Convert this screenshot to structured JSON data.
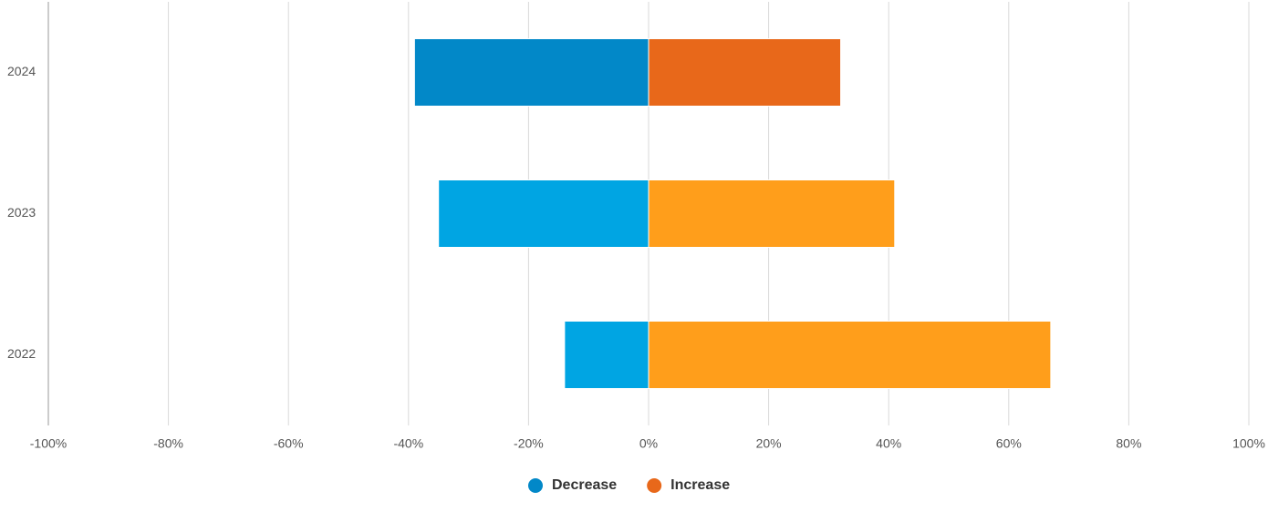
{
  "chart_data": {
    "type": "diverging-bar",
    "categories": [
      "2024",
      "2023",
      "2022"
    ],
    "series": [
      {
        "name": "Decrease",
        "color": "#0288c8",
        "colors": [
          "#0288c8",
          "#00a5e3",
          "#00a5e3"
        ],
        "values": [
          -39,
          -35,
          -14
        ]
      },
      {
        "name": "Increase",
        "color": "#e8681a",
        "colors": [
          "#e8681a",
          "#ff9e1b",
          "#ff9e1b"
        ],
        "values": [
          32,
          41,
          67
        ]
      }
    ],
    "xlim": [
      -100,
      100
    ],
    "xticks": [
      {
        "value": -100,
        "label": "-100%"
      },
      {
        "value": -80,
        "label": "-80%"
      },
      {
        "value": -60,
        "label": "-60%"
      },
      {
        "value": -40,
        "label": "-40%"
      },
      {
        "value": -20,
        "label": "-20%"
      },
      {
        "value": 0,
        "label": "0%"
      },
      {
        "value": 20,
        "label": "20%"
      },
      {
        "value": 40,
        "label": "40%"
      },
      {
        "value": 60,
        "label": "60%"
      },
      {
        "value": 80,
        "label": "80%"
      },
      {
        "value": 100,
        "label": "100%"
      }
    ],
    "grid": true,
    "legend": "bottom"
  }
}
